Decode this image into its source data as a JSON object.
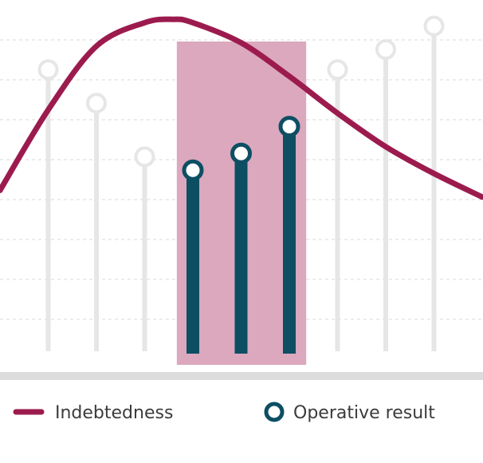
{
  "chart_data": {
    "type": "line",
    "title": "",
    "xlabel": "",
    "ylabel": "",
    "ylim": [
      0,
      10
    ],
    "grid": true,
    "legend_position": "bottom",
    "highlight_range": [
      4,
      6
    ],
    "series": [
      {
        "name": "Indebtedness",
        "kind": "line",
        "color": "#9c1b4e",
        "x": [
          0,
          1,
          2,
          3,
          3.6,
          4,
          5,
          6,
          7,
          8,
          9,
          10
        ],
        "values": [
          4.8,
          7.2,
          9.1,
          9.8,
          9.9,
          9.8,
          9.2,
          8.2,
          7.1,
          6.1,
          5.3,
          4.6
        ]
      },
      {
        "name": "Operative result",
        "kind": "lollipop",
        "color": "#0d4e63",
        "muted_color": "#e6e6e6",
        "x": [
          1,
          2,
          3,
          4,
          5,
          6,
          7,
          8,
          9
        ],
        "values": [
          8.4,
          7.4,
          5.8,
          5.4,
          5.9,
          6.7,
          8.4,
          9.0,
          9.7
        ],
        "highlighted": [
          false,
          false,
          false,
          true,
          true,
          true,
          false,
          false,
          false
        ]
      }
    ],
    "highlight_color": "#dba8bd",
    "gridline_color": "#d9d9d9",
    "baseline_color": "#dcdcdc"
  }
}
